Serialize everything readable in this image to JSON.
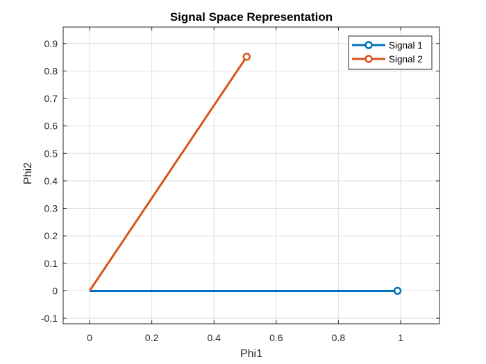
{
  "chart_data": {
    "type": "line",
    "title": "Signal Space Representation",
    "xlabel": "Phi1",
    "ylabel": "Phi2",
    "xlim": [
      -0.085,
      1.125
    ],
    "ylim": [
      -0.12,
      0.96
    ],
    "xticks": [
      0,
      0.2,
      0.4,
      0.6,
      0.8,
      1
    ],
    "xtick_labels": [
      "0",
      "0.2",
      "0.4",
      "0.6",
      "0.8",
      "1"
    ],
    "yticks": [
      -0.1,
      0,
      0.1,
      0.2,
      0.3,
      0.4,
      0.5,
      0.6,
      0.7,
      0.8,
      0.9
    ],
    "ytick_labels": [
      "-0.1",
      "0",
      "0.1",
      "0.2",
      "0.3",
      "0.4",
      "0.5",
      "0.6",
      "0.7",
      "0.8",
      "0.9"
    ],
    "grid": true,
    "legend_position": "top-right",
    "series": [
      {
        "name": "Signal 1",
        "color": "#0072BD",
        "x": [
          0,
          0.99
        ],
        "y": [
          0,
          0
        ],
        "marker": "open-circle-at-end"
      },
      {
        "name": "Signal 2",
        "color": "#D95319",
        "x": [
          0,
          0.505
        ],
        "y": [
          0,
          0.852
        ],
        "marker": "open-circle-at-end"
      }
    ]
  }
}
